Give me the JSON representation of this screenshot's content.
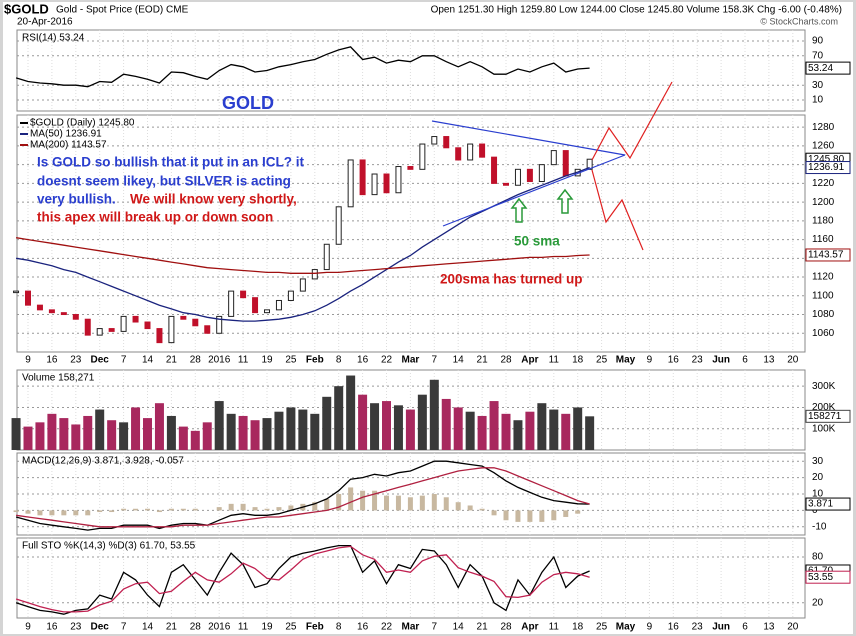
{
  "header": {
    "symbol": "$GOLD",
    "description": "Gold - Spot Price (EOD) CME",
    "date": "20-Apr-2016",
    "quote": "Open 1251.30  High 1259.80  Low 1244.00  Close 1245.80  Volume 158.3K  Chg -6.00 (-0.48%)",
    "credit": "© StockCharts.com"
  },
  "x_axis": {
    "labels": [
      "9",
      "16",
      "23",
      "Dec",
      "7",
      "14",
      "21",
      "28",
      "2016",
      "11",
      "19",
      "25",
      "Feb",
      "8",
      "16",
      "22",
      "Mar",
      "7",
      "14",
      "21",
      "28",
      "Apr",
      "11",
      "18",
      "25",
      "May",
      "9",
      "16",
      "23",
      "Jun",
      "6",
      "13",
      "20"
    ]
  },
  "annotations": {
    "title": "GOLD",
    "blue_1": "Is GOLD so bullish that it put in an ICL?  it",
    "blue_2": "doesnt seem likey, but SILVER is acting",
    "blue_3": "very bullish.",
    "red_1": "We will know very shortly,",
    "red_2": "this apex will break up or down soon",
    "sma50": "50 sma",
    "sma200": "200sma has turned up"
  },
  "chart_data": [
    {
      "type": "line",
      "legend": "RSI(14) 53.24",
      "ylim": [
        -5,
        105
      ],
      "yticks": [
        10,
        30,
        70,
        90
      ],
      "series": [
        {
          "color": "#000000",
          "last_label": "53.24",
          "values": [
            40,
            35,
            33,
            32,
            30,
            30,
            28,
            35,
            34,
            45,
            42,
            38,
            33,
            48,
            47,
            42,
            38,
            50,
            58,
            55,
            48,
            50,
            55,
            58,
            62,
            65,
            72,
            78,
            82,
            65,
            68,
            60,
            64,
            62,
            70,
            70,
            62,
            55,
            62,
            55,
            45,
            45,
            52,
            48,
            55,
            60,
            48,
            52,
            53.24
          ]
        }
      ]
    },
    {
      "type": "line",
      "ylim": [
        1040,
        1293
      ],
      "yticks": [
        1060,
        1080,
        1100,
        1120,
        1140,
        1160,
        1180,
        1200,
        1220,
        1240,
        1260,
        1280
      ],
      "series": [
        {
          "name": "$GOLD (Daily) 1245.80",
          "type": "candle",
          "color": "#000000",
          "up_color": "#222222",
          "down_color": "#c0102a",
          "last_label": "1245.80",
          "values": [
            1105,
            1090,
            1085,
            1082,
            1080,
            1075,
            1058,
            1065,
            1062,
            1078,
            1072,
            1065,
            1050,
            1078,
            1075,
            1068,
            1060,
            1078,
            1105,
            1098,
            1082,
            1085,
            1095,
            1105,
            1118,
            1128,
            1155,
            1195,
            1245,
            1208,
            1230,
            1210,
            1238,
            1235,
            1262,
            1270,
            1258,
            1245,
            1262,
            1248,
            1220,
            1218,
            1235,
            1222,
            1240,
            1255,
            1228,
            1235,
            1245.8
          ]
        },
        {
          "name": "MA(50) 1236.91",
          "color": "#1a237e",
          "last_label": "1236.91",
          "values": [
            1140,
            1138,
            1135,
            1132,
            1128,
            1125,
            1120,
            1115,
            1110,
            1105,
            1100,
            1095,
            1090,
            1086,
            1082,
            1080,
            1077,
            1075,
            1074,
            1073,
            1073,
            1074,
            1075,
            1077,
            1080,
            1084,
            1090,
            1097,
            1105,
            1112,
            1120,
            1128,
            1136,
            1143,
            1152,
            1160,
            1168,
            1176,
            1184,
            1190,
            1196,
            1202,
            1208,
            1213,
            1218,
            1223,
            1228,
            1232,
            1236.91
          ]
        },
        {
          "name": "MA(200) 1143.57",
          "color": "#a01010",
          "last_label": "1143.57",
          "values": [
            1162,
            1160,
            1158,
            1156,
            1154,
            1152,
            1150,
            1148,
            1146,
            1144,
            1142,
            1140,
            1138,
            1136,
            1134,
            1132,
            1130,
            1129,
            1128,
            1127,
            1126,
            1125,
            1125,
            1124,
            1124,
            1124,
            1125,
            1125,
            1126,
            1127,
            1128,
            1129,
            1130,
            1131,
            1132,
            1133,
            1134,
            1135,
            1136,
            1137,
            1138,
            1139,
            1140,
            1141,
            1141,
            1142,
            1142,
            1143,
            1143.57
          ]
        }
      ]
    },
    {
      "type": "bar",
      "legend": "Volume 158,271",
      "ylim": [
        0,
        376000
      ],
      "yticks": [
        {
          "value": 100000,
          "label": "100K"
        },
        {
          "value": 200000,
          "label": "200K"
        },
        {
          "value": 300000,
          "label": "300K"
        }
      ],
      "series": [
        {
          "type": "bar",
          "up_color": "#3a3a3a",
          "down_color": "#a8285e",
          "last_label": "158271",
          "values": [
            150000,
            110000,
            130000,
            170000,
            150000,
            120000,
            160000,
            190000,
            140000,
            130000,
            200000,
            150000,
            220000,
            160000,
            110000,
            90000,
            130000,
            230000,
            170000,
            160000,
            140000,
            150000,
            180000,
            200000,
            190000,
            170000,
            250000,
            300000,
            350000,
            260000,
            220000,
            230000,
            210000,
            190000,
            260000,
            330000,
            240000,
            200000,
            180000,
            160000,
            230000,
            170000,
            140000,
            180000,
            220000,
            190000,
            170000,
            200000,
            158271
          ]
        }
      ]
    },
    {
      "type": "line",
      "legend": "MACD(12,26,9) 3.871, 3.928, -0.057",
      "ylim": [
        -15,
        35
      ],
      "yticks": [
        -10,
        0,
        10,
        20,
        30
      ],
      "series": [
        {
          "type": "bar",
          "color": "#c8b8a0",
          "values": [
            -1,
            -2,
            -3,
            -3,
            -3,
            -3,
            -3,
            -1,
            -1,
            1,
            1,
            1,
            -1,
            1,
            1,
            1,
            0,
            2,
            4,
            4,
            2,
            1,
            2,
            3,
            4,
            5,
            7,
            10,
            14,
            12,
            12,
            9,
            9,
            8,
            9,
            10,
            8,
            5,
            3,
            1,
            -3,
            -6,
            -7,
            -7,
            -7,
            -6,
            -4,
            -2,
            -0.057
          ]
        },
        {
          "color": "#000000",
          "last_label": "3.871",
          "values": [
            -4,
            -6,
            -8,
            -9,
            -10,
            -11,
            -12,
            -11,
            -11,
            -9,
            -9,
            -9,
            -11,
            -9,
            -8,
            -8,
            -9,
            -6,
            -3,
            -2,
            -3,
            -3,
            -2,
            0,
            2,
            4,
            7,
            12,
            19,
            20,
            22,
            21,
            23,
            24,
            27,
            30,
            30,
            29,
            28,
            27,
            23,
            18,
            14,
            11,
            8,
            6,
            5,
            4,
            3.871
          ]
        },
        {
          "color": "#b02040",
          "values": [
            -3,
            -4,
            -5,
            -6,
            -7,
            -8,
            -9,
            -10,
            -10,
            -10,
            -10,
            -10,
            -10,
            -10,
            -9,
            -9,
            -9,
            -8,
            -7,
            -6,
            -5,
            -4,
            -4,
            -3,
            -2,
            -1,
            0,
            2,
            5,
            8,
            10,
            12,
            14,
            16,
            18,
            20,
            22,
            24,
            25,
            26,
            26,
            24,
            21,
            18,
            15,
            12,
            9,
            6,
            3.928
          ]
        }
      ]
    },
    {
      "type": "line",
      "legend": "Full STO %K(14,3) %D(3) 61.70, 53.55",
      "ylim": [
        0,
        105
      ],
      "yticks": [
        20,
        80
      ],
      "series": [
        {
          "color": "#000000",
          "last_label": "61.70",
          "values": [
            20,
            15,
            10,
            8,
            5,
            10,
            12,
            30,
            25,
            60,
            50,
            30,
            15,
            60,
            70,
            50,
            30,
            60,
            85,
            70,
            40,
            45,
            65,
            80,
            85,
            88,
            92,
            95,
            95,
            60,
            75,
            45,
            70,
            65,
            90,
            88,
            70,
            40,
            70,
            55,
            20,
            10,
            50,
            30,
            60,
            80,
            40,
            55,
            61.7
          ]
        },
        {
          "color": "#c02050",
          "last_label": "53.55",
          "values": [
            25,
            20,
            15,
            11,
            8,
            8,
            9,
            17,
            22,
            38,
            45,
            47,
            32,
            35,
            48,
            60,
            50,
            47,
            58,
            72,
            65,
            52,
            50,
            63,
            77,
            84,
            88,
            92,
            94,
            83,
            77,
            60,
            63,
            60,
            75,
            81,
            83,
            66,
            60,
            55,
            48,
            28,
            27,
            30,
            47,
            57,
            60,
            58,
            53.55
          ]
        }
      ]
    }
  ]
}
